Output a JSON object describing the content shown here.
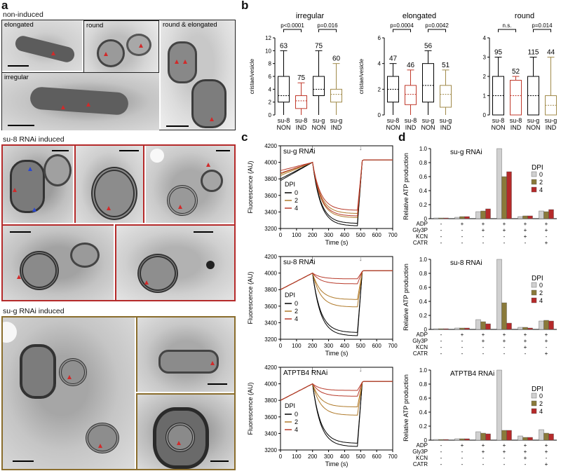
{
  "panel_labels": {
    "a": "a",
    "b": "b",
    "c": "c",
    "d": "d"
  },
  "panel_a": {
    "section_non_induced": "non-induced",
    "section_su8": "su-8 RNAi induced",
    "section_sug": "su-g RNAi induced",
    "tile_labels": {
      "elongated": "elongated",
      "round": "round",
      "round_elongated": "round & elongated",
      "irregular": "irregular"
    },
    "colors": {
      "su8_frame": "#b52a2a",
      "sug_frame": "#8a6d2c"
    }
  },
  "chart_data": [
    {
      "id": "b1",
      "type": "box",
      "title": "irregular",
      "ylabel": "cristae/vesicle",
      "ylim": [
        0,
        12
      ],
      "yticks": [
        "0",
        "2",
        "4",
        "6",
        "8",
        "10",
        "12"
      ],
      "categories": [
        "su-8\nNON",
        "su-8\nIND",
        "su-g\nNON",
        "su-g\nIND"
      ],
      "boxes": [
        {
          "min": 0,
          "q1": 2,
          "median": 3,
          "q3": 6,
          "max": 10,
          "color": "#000000"
        },
        {
          "min": 0,
          "q1": 1,
          "median": 2.2,
          "q3": 3,
          "max": 5,
          "color": "#c0392b"
        },
        {
          "min": 0,
          "q1": 3,
          "median": 4,
          "q3": 6,
          "max": 10,
          "color": "#000000"
        },
        {
          "min": 0,
          "q1": 2,
          "median": 3.2,
          "q3": 4,
          "max": 8,
          "color": "#a08a4a"
        }
      ],
      "n": [
        "63",
        "75",
        "75",
        "60"
      ],
      "brackets": [
        {
          "from": 0,
          "to": 1,
          "text": "p<0.0001"
        },
        {
          "from": 2,
          "to": 3,
          "text": "p=0.016"
        }
      ]
    },
    {
      "id": "b2",
      "type": "box",
      "title": "elongated",
      "ylabel": "cristae/vesicle",
      "ylim": [
        0,
        6
      ],
      "yticks": [
        "0",
        "2",
        "4",
        "6"
      ],
      "categories": [
        "su-8\nNON",
        "su-8\nIND",
        "su-g\nNON",
        "su-g\nIND"
      ],
      "boxes": [
        {
          "min": 0,
          "q1": 1,
          "median": 2,
          "q3": 3,
          "max": 4,
          "color": "#000000"
        },
        {
          "min": 0,
          "q1": 0.8,
          "median": 1.6,
          "q3": 2.3,
          "max": 3.5,
          "color": "#c0392b"
        },
        {
          "min": 0,
          "q1": 1,
          "median": 2.3,
          "q3": 4,
          "max": 5,
          "color": "#000000"
        },
        {
          "min": 0,
          "q1": 0.6,
          "median": 1.6,
          "q3": 2.3,
          "max": 3.5,
          "color": "#a08a4a"
        }
      ],
      "n": [
        "47",
        "46",
        "56",
        "51"
      ],
      "brackets": [
        {
          "from": 0,
          "to": 1,
          "text": "p=0.0004"
        },
        {
          "from": 2,
          "to": 3,
          "text": "p=0.0042"
        }
      ]
    },
    {
      "id": "b3",
      "type": "box",
      "title": "round",
      "ylabel": "",
      "ylim": [
        0,
        4
      ],
      "yticks": [
        "0",
        "1",
        "2",
        "3",
        "4"
      ],
      "categories": [
        "su-8\nNON",
        "su-8\nIND",
        "su-g\nNON",
        "su-g\nIND"
      ],
      "boxes": [
        {
          "min": 0,
          "q1": 0,
          "median": 1,
          "q3": 2,
          "max": 3,
          "color": "#000000"
        },
        {
          "min": 0,
          "q1": 0,
          "median": 1,
          "q3": 1.8,
          "max": 2,
          "color": "#c0392b"
        },
        {
          "min": 0,
          "q1": 0,
          "median": 1,
          "q3": 2,
          "max": 3,
          "color": "#000000"
        },
        {
          "min": 0,
          "q1": 0,
          "median": 0.5,
          "q3": 1,
          "max": 3,
          "color": "#a08a4a"
        }
      ],
      "n": [
        "95",
        "52",
        "115",
        "44"
      ],
      "brackets": [
        {
          "from": 0,
          "to": 1,
          "text": "n.s."
        },
        {
          "from": 2,
          "to": 3,
          "text": "p=0.014"
        }
      ]
    },
    {
      "id": "c1",
      "type": "line",
      "title": "su-g RNAi",
      "xlabel": "Time (s)",
      "ylabel": "Fluorescence (AU)",
      "xlim": [
        0,
        700
      ],
      "ylim": [
        3200,
        4200
      ],
      "xticks": [
        "0",
        "100",
        "200",
        "300",
        "400",
        "500",
        "600",
        "700"
      ],
      "yticks": [
        "3200",
        "3400",
        "3600",
        "3800",
        "4000",
        "4200"
      ],
      "legend_title": "DPI",
      "legend": [
        "0",
        "2",
        "4"
      ],
      "series": [
        {
          "name": "0",
          "color": "#000000",
          "min": 3230,
          "start": 3800
        },
        {
          "name": "0",
          "color": "#000000",
          "min": 3260,
          "start": 3780
        },
        {
          "name": "2",
          "color": "#b07a2a",
          "min": 3330,
          "start": 3860
        },
        {
          "name": "2",
          "color": "#b07a2a",
          "min": 3380,
          "start": 3840
        },
        {
          "name": "4",
          "color": "#b83a2a",
          "min": 3420,
          "start": 3900
        },
        {
          "name": "4",
          "color": "#b83a2a",
          "min": 3350,
          "start": 3870
        }
      ]
    },
    {
      "id": "c2",
      "type": "line",
      "title": "su-8 RNAi",
      "xlabel": "Time (s)",
      "ylabel": "Fluorescence (AU)",
      "xlim": [
        0,
        700
      ],
      "ylim": [
        3200,
        4200
      ],
      "xticks": [
        "0",
        "100",
        "200",
        "300",
        "400",
        "500",
        "600",
        "700"
      ],
      "yticks": [
        "3200",
        "3400",
        "3600",
        "3800",
        "4000",
        "4200"
      ],
      "legend_title": "DPI",
      "legend": [
        "0",
        "2",
        "4"
      ],
      "series": [
        {
          "name": "0",
          "color": "#000000",
          "min": 3240,
          "start": 3800
        },
        {
          "name": "0",
          "color": "#000000",
          "min": 3280,
          "start": 3800
        },
        {
          "name": "2",
          "color": "#b07a2a",
          "min": 3590,
          "start": 3800
        },
        {
          "name": "2",
          "color": "#b07a2a",
          "min": 3680,
          "start": 3800
        },
        {
          "name": "4",
          "color": "#b83a2a",
          "min": 3870,
          "start": 3800
        },
        {
          "name": "4",
          "color": "#b83a2a",
          "min": 3930,
          "start": 3800
        }
      ]
    },
    {
      "id": "c3",
      "type": "line",
      "title": "ATPTB4 RNAi",
      "xlabel": "Time (s)",
      "ylabel": "Fluorescence (AU)",
      "xlim": [
        0,
        700
      ],
      "ylim": [
        3200,
        4200
      ],
      "xticks": [
        "0",
        "100",
        "200",
        "300",
        "400",
        "500",
        "600",
        "700"
      ],
      "yticks": [
        "3200",
        "3400",
        "3600",
        "3800",
        "4000",
        "4200"
      ],
      "legend_title": "DPI",
      "legend": [
        "0",
        "2",
        "4"
      ],
      "series": [
        {
          "name": "0",
          "color": "#000000",
          "min": 3240,
          "start": 3800
        },
        {
          "name": "0",
          "color": "#000000",
          "min": 3280,
          "start": 3800
        },
        {
          "name": "2",
          "color": "#b07a2a",
          "min": 3620,
          "start": 3800
        },
        {
          "name": "2",
          "color": "#b07a2a",
          "min": 3720,
          "start": 3800
        },
        {
          "name": "4",
          "color": "#b83a2a",
          "min": 3850,
          "start": 3800
        },
        {
          "name": "4",
          "color": "#b83a2a",
          "min": 3920,
          "start": 3800
        }
      ]
    },
    {
      "id": "d1",
      "type": "bar",
      "title": "su-g RNAi",
      "ylabel": "Relative ATP production",
      "ylim": [
        0,
        1.0
      ],
      "yticks": [
        "0",
        "0.2",
        "0.4",
        "0.6",
        "0.8",
        "1.0"
      ],
      "legend_title": "DPI",
      "legend": [
        "0",
        "2",
        "4"
      ],
      "colors": [
        "#d0d0d0",
        "#8a7a3a",
        "#b52a2a"
      ],
      "groups": [
        [
          0.01,
          0.01,
          0.01
        ],
        [
          0.02,
          0.03,
          0.03
        ],
        [
          0.1,
          0.11,
          0.14
        ],
        [
          1.0,
          0.6,
          0.67
        ],
        [
          0.03,
          0.04,
          0.04
        ],
        [
          0.11,
          0.1,
          0.13
        ]
      ],
      "conditions": {
        "ADP": [
          "-",
          "+",
          "+",
          "+",
          "+",
          "+"
        ],
        "Gly3P": [
          "-",
          "-",
          "+",
          "+",
          "+",
          "+"
        ],
        "KCN": [
          "-",
          "-",
          "-",
          "-",
          "+",
          "-"
        ],
        "CATR": [
          "-",
          "-",
          "-",
          "-",
          "-",
          "+"
        ]
      }
    },
    {
      "id": "d2",
      "type": "bar",
      "title": "su-8 RNAi",
      "ylabel": "Relative ATP production",
      "ylim": [
        0,
        1.0
      ],
      "yticks": [
        "0",
        "0.2",
        "0.4",
        "0.6",
        "0.8",
        "1.0"
      ],
      "legend_title": "DPI",
      "legend": [
        "0",
        "2",
        "4"
      ],
      "colors": [
        "#d0d0d0",
        "#8a7a3a",
        "#b52a2a"
      ],
      "groups": [
        [
          0.01,
          0.01,
          0.01
        ],
        [
          0.02,
          0.02,
          0.02
        ],
        [
          0.14,
          0.11,
          0.08
        ],
        [
          1.0,
          0.38,
          0.09
        ],
        [
          0.03,
          0.03,
          0.02
        ],
        [
          0.12,
          0.13,
          0.12
        ]
      ],
      "conditions": {
        "ADP": [
          "-",
          "+",
          "+",
          "+",
          "+",
          "+"
        ],
        "Gly3P": [
          "-",
          "-",
          "+",
          "+",
          "+",
          "+"
        ],
        "KCN": [
          "-",
          "-",
          "-",
          "-",
          "+",
          "-"
        ],
        "CATR": [
          "-",
          "-",
          "-",
          "-",
          "-",
          "+"
        ]
      }
    },
    {
      "id": "d3",
      "type": "bar",
      "title": "ATPTB4 RNAi",
      "ylabel": "Relative ATP production",
      "ylim": [
        0,
        1.0
      ],
      "yticks": [
        "0",
        "0.2",
        "0.4",
        "0.6",
        "0.8",
        "1.0"
      ],
      "legend_title": "DPI",
      "legend": [
        "0",
        "2",
        "4"
      ],
      "colors": [
        "#d0d0d0",
        "#8a7a3a",
        "#b52a2a"
      ],
      "groups": [
        [
          0.01,
          0.01,
          0.01
        ],
        [
          0.02,
          0.02,
          0.02
        ],
        [
          0.12,
          0.1,
          0.09
        ],
        [
          1.0,
          0.14,
          0.14
        ],
        [
          0.06,
          0.04,
          0.04
        ],
        [
          0.15,
          0.1,
          0.09
        ]
      ],
      "conditions": {
        "ADP": [
          "-",
          "+",
          "+",
          "+",
          "+",
          "+"
        ],
        "Gly3P": [
          "-",
          "-",
          "+",
          "+",
          "+",
          "+"
        ],
        "KCN": [
          "-",
          "-",
          "-",
          "-",
          "+",
          "-"
        ],
        "CATR": [
          "-",
          "-",
          "-",
          "-",
          "-",
          "+"
        ]
      }
    }
  ]
}
